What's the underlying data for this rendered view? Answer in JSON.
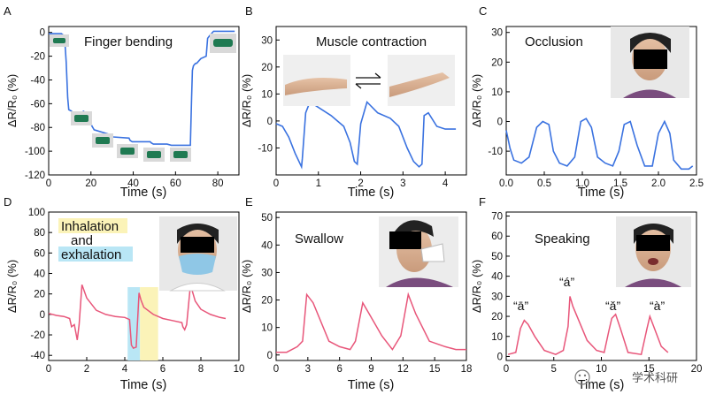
{
  "watermark": "学术科研",
  "chart_data": [
    {
      "panel": "A",
      "type": "line",
      "color": "#3a72e0",
      "annotation": "Finger bending",
      "xlabel": "Time (s)",
      "ylabel": "ΔR/R₀ (%)",
      "xlim": [
        0,
        90
      ],
      "ylim": [
        -120,
        5
      ],
      "xticks": [
        0,
        20,
        40,
        60,
        80
      ],
      "yticks": [
        0,
        -20,
        -40,
        -60,
        -80,
        -100,
        -120
      ],
      "x": [
        0,
        6,
        7.5,
        8.3,
        9,
        9.5,
        10.5,
        12,
        16,
        16.5,
        17.5,
        20,
        20.5,
        21.5,
        29,
        29.5,
        30.5,
        38,
        38.5,
        39.5,
        48,
        48.5,
        49.5,
        56,
        58,
        67,
        67.6,
        68,
        68.5,
        69.5,
        70,
        72,
        74.5,
        75.2,
        76,
        78,
        85,
        88
      ],
      "y": [
        -1,
        -1,
        -3,
        -25,
        -55,
        -65,
        -66,
        -68,
        -69,
        -66,
        -75,
        -77,
        -79,
        -82,
        -86,
        -87,
        -88,
        -89,
        -91,
        -92,
        -92,
        -93,
        -94,
        -94,
        -95,
        -95,
        -55,
        -32,
        -28,
        -26,
        -26,
        -22,
        -20,
        -5,
        -3,
        1,
        1,
        1
      ]
    },
    {
      "panel": "B",
      "type": "line",
      "color": "#3a72e0",
      "annotation": "Muscle contraction",
      "xlabel": "Time (s)",
      "ylabel": "ΔR/R₀ (%)",
      "xlim": [
        0,
        4.5
      ],
      "ylim": [
        -20,
        35
      ],
      "xticks": [
        0,
        1,
        2,
        3,
        4
      ],
      "yticks": [
        30,
        20,
        10,
        0,
        -10
      ],
      "x": [
        0,
        0.15,
        0.3,
        0.45,
        0.6,
        0.62,
        0.7,
        0.8,
        1.0,
        1.3,
        1.6,
        1.75,
        1.85,
        1.92,
        2.0,
        2.15,
        2.4,
        2.7,
        2.9,
        3.1,
        3.25,
        3.38,
        3.45,
        3.5,
        3.6,
        3.8,
        4.0,
        4.25
      ],
      "y": [
        -1,
        -2,
        -6,
        -12,
        -17,
        -14,
        3,
        7,
        5,
        2,
        -2,
        -8,
        -15,
        -16,
        -1,
        7,
        3,
        1,
        -2,
        -10,
        -15,
        -17,
        -16,
        2,
        3,
        -2,
        -3,
        -3
      ]
    },
    {
      "panel": "C",
      "type": "line",
      "color": "#3a72e0",
      "annotation": "Occlusion",
      "xlabel": "Time (s)",
      "ylabel": "ΔR/R₀ (%)",
      "xlim": [
        0,
        2.5
      ],
      "ylim": [
        -18,
        32
      ],
      "xticks": [
        0.0,
        0.5,
        1.0,
        1.5,
        2.0,
        2.5
      ],
      "yticks": [
        30,
        20,
        10,
        0,
        -10
      ],
      "x": [
        0,
        0.05,
        0.1,
        0.2,
        0.3,
        0.4,
        0.48,
        0.56,
        0.62,
        0.7,
        0.8,
        0.9,
        0.98,
        1.05,
        1.12,
        1.2,
        1.3,
        1.4,
        1.48,
        1.55,
        1.63,
        1.72,
        1.82,
        1.92,
        2.0,
        2.08,
        2.15,
        2.2,
        2.3,
        2.4,
        2.45
      ],
      "y": [
        -3,
        -9,
        -13,
        -14,
        -12,
        -2,
        0,
        -1,
        -10,
        -14,
        -15,
        -12,
        0,
        1,
        -2,
        -12,
        -14,
        -15,
        -10,
        -1,
        0,
        -8,
        -15,
        -15,
        -4,
        0,
        -4,
        -13,
        -16,
        -16,
        -15
      ]
    },
    {
      "panel": "D",
      "type": "line",
      "color": "#e8567a",
      "annotation": [
        "Inhalation",
        "and",
        "exhalation"
      ],
      "xlabel": "Time (s)",
      "ylabel": "ΔR/R₀ (%)",
      "xlim": [
        0,
        10
      ],
      "ylim": [
        -45,
        100
      ],
      "xticks": [
        0,
        2,
        4,
        6,
        8,
        10
      ],
      "yticks": [
        100,
        80,
        60,
        40,
        20,
        0,
        -20,
        -40
      ],
      "x": [
        0,
        0.4,
        0.8,
        1.1,
        1.2,
        1.35,
        1.5,
        1.6,
        1.75,
        2.0,
        2.5,
        3.0,
        3.5,
        4.0,
        4.25,
        4.35,
        4.45,
        4.6,
        4.75,
        4.85,
        5.0,
        5.5,
        6.0,
        6.5,
        7.0,
        7.05,
        7.15,
        7.25,
        7.45,
        7.7,
        8.0,
        8.5,
        9.0,
        9.3
      ],
      "y": [
        1,
        -1,
        -2,
        -4,
        -12,
        -10,
        -25,
        -10,
        29,
        16,
        4,
        0,
        -2,
        -3,
        -5,
        -30,
        -33,
        -32,
        21,
        14,
        7,
        0,
        -4,
        -6,
        -8,
        -12,
        -15,
        -10,
        29,
        13,
        5,
        0,
        -3,
        -4
      ]
    },
    {
      "panel": "E",
      "type": "line",
      "color": "#e8567a",
      "annotation": "Swallow",
      "xlabel": "Time (s)",
      "ylabel": "ΔR/R₀ (%)",
      "xlim": [
        0,
        18
      ],
      "ylim": [
        -2,
        52
      ],
      "xticks": [
        0,
        3,
        6,
        9,
        12,
        15,
        18
      ],
      "yticks": [
        50,
        40,
        30,
        20,
        10,
        0
      ],
      "x": [
        0,
        1,
        2,
        2.5,
        2.9,
        3.5,
        5,
        6,
        7,
        7.5,
        8.2,
        8.8,
        10,
        11,
        11.8,
        12.5,
        13.2,
        14.5,
        16,
        17,
        18
      ],
      "y": [
        1,
        1,
        3,
        5,
        22,
        19,
        5,
        3,
        2,
        5,
        19,
        15,
        7,
        2,
        7,
        22,
        15,
        5,
        3,
        2,
        2
      ]
    },
    {
      "panel": "F",
      "type": "line",
      "color": "#e8567a",
      "annotation": "Speaking",
      "labels": [
        "“ā”",
        "“á”",
        "“ǎ”",
        "“à”"
      ],
      "xlabel": "Time (s)",
      "ylabel": "ΔR/R₀ (%)",
      "xlim": [
        0,
        20
      ],
      "ylim": [
        -2,
        72
      ],
      "xticks": [
        0,
        5,
        10,
        15,
        20
      ],
      "yticks": [
        70,
        60,
        50,
        40,
        30,
        20,
        10,
        0
      ],
      "x": [
        0.2,
        1,
        1.5,
        1.9,
        2.3,
        3,
        4,
        5.2,
        6,
        6.5,
        6.7,
        7,
        8.5,
        9.5,
        10.3,
        10.8,
        11.1,
        11.5,
        12,
        12.8,
        14.2,
        14.8,
        15.1,
        15.5,
        16.3,
        17
      ],
      "y": [
        1,
        2,
        14,
        18,
        16,
        10,
        3,
        1,
        3,
        15,
        30,
        25,
        8,
        3,
        2,
        13,
        19,
        21,
        14,
        2,
        1,
        14,
        20,
        15,
        5,
        2
      ]
    }
  ]
}
